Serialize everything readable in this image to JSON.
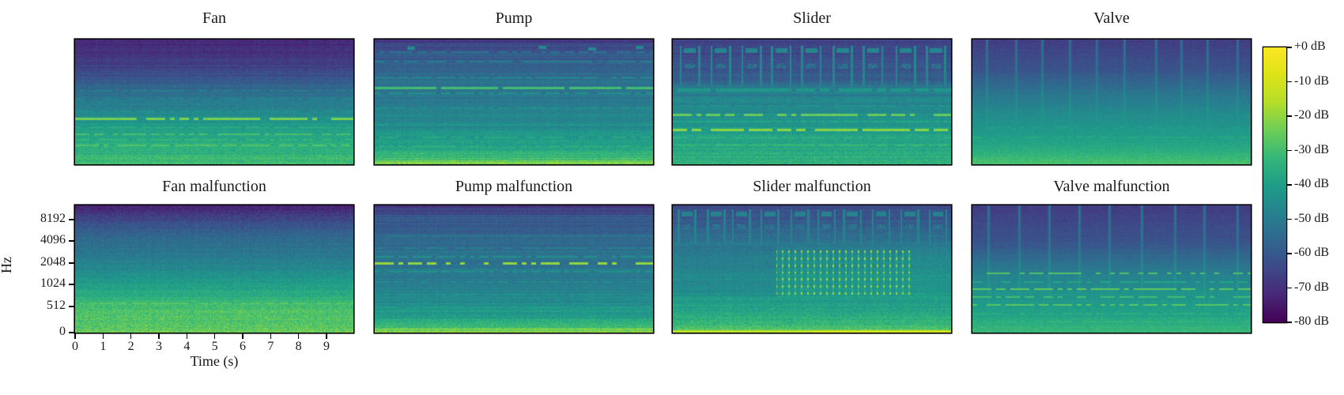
{
  "figure": {
    "background": "#ffffff",
    "text_color": "#1a1a1a"
  },
  "chart_data": {
    "type": "heatmap",
    "subtype": "spectrogram-grid",
    "colormap": "viridis",
    "clim_db": [
      -80,
      0
    ],
    "grid": "2 rows x 4 columns, shared axes; tick labels only on bottom-left panel",
    "time_axis": {
      "label": "Time (s)",
      "ticks": [
        "0",
        "1",
        "2",
        "3",
        "4",
        "5",
        "6",
        "7",
        "8",
        "9"
      ],
      "tick_rel": [
        0,
        0.1004,
        0.2008,
        0.3011,
        0.4015,
        0.5019,
        0.6023,
        0.7027,
        0.803,
        0.9034
      ],
      "range_s": [
        0,
        10
      ]
    },
    "freq_axis": {
      "label": "Hz",
      "ticks": [
        "8192",
        "4096",
        "2048",
        "1024",
        "512",
        "0"
      ],
      "tick_rel": [
        0.112,
        0.28,
        0.453,
        0.621,
        0.795,
        1.0
      ],
      "scale": "mel-like (octaves compressed toward top)"
    },
    "colorbar": {
      "tick_labels": [
        "+0 dB",
        "-10 dB",
        "-20 dB",
        "-30 dB",
        "-40 dB",
        "-50 dB",
        "-60 dB",
        "-70 dB",
        "-80 dB"
      ],
      "top_value_db": 0,
      "bottom_value_db": -80,
      "colors": {
        "top": "#fde725",
        "mid": "#21918c",
        "bottom": "#440154"
      }
    },
    "panels": [
      {
        "title": "Fan",
        "row": 0,
        "col": 0,
        "pattern": "dark blue-purple upper half fading to teal; bright yellow-green harmonic lines in lower third; green speckled bottom",
        "render": {
          "seed": 11,
          "noise": 3,
          "banding": 2.2,
          "profile": [
            [
              0,
              -72
            ],
            [
              0.22,
              -66
            ],
            [
              0.4,
              -55
            ],
            [
              0.55,
              -48
            ],
            [
              0.63,
              -44
            ],
            [
              0.75,
              -38
            ],
            [
              0.9,
              -34
            ],
            [
              1,
              -30
            ]
          ],
          "hlines": [
            {
              "y": 0.41,
              "db": -49,
              "th": 2,
              "dash": 0.35
            },
            {
              "y": 0.47,
              "db": -48,
              "th": 2,
              "dash": 0.35
            },
            {
              "y": 0.575,
              "db": -44,
              "th": 2,
              "dash": 0.3
            },
            {
              "y": 0.635,
              "db": -23,
              "th": 3,
              "dash": 0.22
            },
            {
              "y": 0.7,
              "db": -36,
              "th": 2,
              "dash": 0.3
            },
            {
              "y": 0.755,
              "db": -29,
              "th": 2,
              "dash": 0.3
            },
            {
              "y": 0.8,
              "db": -32,
              "th": 2,
              "dash": 0.35
            },
            {
              "y": 0.845,
              "db": -28,
              "th": 2,
              "dash": 0.3
            },
            {
              "y": 0.885,
              "db": -34,
              "th": 2,
              "dash": 0.4
            }
          ]
        }
      },
      {
        "title": "Pump",
        "row": 0,
        "col": 1,
        "pattern": "teal field with many fine horizontal striations; prominent teal-green line near 40% height; bright yellow-green bottom edge",
        "render": {
          "seed": 22,
          "noise": 3,
          "banding": 3.5,
          "profile": [
            [
              0,
              -68
            ],
            [
              0.06,
              -62
            ],
            [
              0.18,
              -57
            ],
            [
              0.32,
              -53
            ],
            [
              0.5,
              -50
            ],
            [
              0.62,
              -47
            ],
            [
              0.75,
              -43
            ],
            [
              0.88,
              -38
            ],
            [
              0.95,
              -30
            ],
            [
              1,
              -20
            ]
          ],
          "blips": [
            [
              0.13,
              0.065
            ],
            [
              0.6,
              0.06
            ],
            [
              0.78,
              0.07
            ],
            [
              0.95,
              0.06
            ]
          ],
          "hlines": [
            {
              "y": 0.1,
              "db": -52,
              "th": 2,
              "dash": 0.3
            },
            {
              "y": 0.175,
              "db": -50,
              "th": 2,
              "dash": 0.3
            },
            {
              "y": 0.3,
              "db": -47,
              "th": 2,
              "dash": 0.35
            },
            {
              "y": 0.385,
              "db": -30,
              "th": 3,
              "dash": 0.05
            },
            {
              "y": 0.43,
              "db": -44,
              "th": 2,
              "dash": 0.3
            },
            {
              "y": 0.55,
              "db": -45,
              "th": 2,
              "dash": 0.4
            },
            {
              "y": 0.68,
              "db": -42,
              "th": 2,
              "dash": 0.4
            },
            {
              "y": 0.78,
              "db": -37,
              "th": 2,
              "dash": 0.45
            },
            {
              "y": 0.85,
              "db": -35,
              "th": 2,
              "dash": 0.45
            }
          ]
        }
      },
      {
        "title": "Slider",
        "row": 0,
        "col": 2,
        "pattern": "~9 periodic arch/bottle blobs on dark top third; bright dashed yellow lines at 60% and 72%; striated green lower half",
        "render": {
          "seed": 33,
          "noise": 3,
          "banding": 2.5,
          "profile": [
            [
              0,
              -66
            ],
            [
              0.3,
              -60
            ],
            [
              0.4,
              -50
            ],
            [
              0.52,
              -47
            ],
            [
              0.65,
              -43
            ],
            [
              0.8,
              -38
            ],
            [
              1,
              -34
            ]
          ],
          "arches": {
            "count": 9,
            "y0": 0.05,
            "y1": 0.37,
            "db": -47
          },
          "hlines": [
            {
              "y": 0.405,
              "db": -42,
              "th": 4,
              "dash": 0.15
            },
            {
              "y": 0.475,
              "db": -45,
              "th": 2,
              "dash": 0.4
            },
            {
              "y": 0.53,
              "db": -43,
              "th": 2,
              "dash": 0.4
            },
            {
              "y": 0.6,
              "db": -25,
              "th": 3,
              "dash": 0.3
            },
            {
              "y": 0.655,
              "db": -38,
              "th": 2,
              "dash": 0.4
            },
            {
              "y": 0.72,
              "db": -21,
              "th": 3,
              "dash": 0.2
            },
            {
              "y": 0.78,
              "db": -34,
              "th": 2,
              "dash": 0.4
            },
            {
              "y": 0.845,
              "db": -32,
              "th": 2,
              "dash": 0.35
            },
            {
              "y": 0.91,
              "db": -35,
              "th": 2,
              "dash": 0.4
            }
          ]
        }
      },
      {
        "title": "Valve",
        "row": 0,
        "col": 3,
        "pattern": "~10 thin periodic vertical impulse streaks over dark purple top half; teal middle; green-yellow speckled bottom",
        "render": {
          "seed": 44,
          "noise": 3.2,
          "banding": 1.8,
          "profile": [
            [
              0,
              -68
            ],
            [
              0.25,
              -62
            ],
            [
              0.45,
              -52
            ],
            [
              0.6,
              -46
            ],
            [
              0.75,
              -42
            ],
            [
              0.88,
              -37
            ],
            [
              1,
              -30
            ]
          ],
          "vstreaks": {
            "count": 10,
            "amp": 17,
            "depth": 0.75,
            "width": 2
          },
          "hlines": [
            {
              "y": 0.7,
              "db": -40,
              "th": 2,
              "dash": 0.5
            },
            {
              "y": 0.78,
              "db": -37,
              "th": 2,
              "dash": 0.5
            }
          ]
        }
      },
      {
        "title": "Fan malfunction",
        "row": 1,
        "col": 0,
        "pattern": "smooth broadband gradient: dark top, teal middle, bright green-yellow speckled lower third (raised noise floor)",
        "render": {
          "seed": 55,
          "noise": 4,
          "banding": 1.5,
          "profile": [
            [
              0,
              -74
            ],
            [
              0.08,
              -66
            ],
            [
              0.2,
              -58
            ],
            [
              0.35,
              -52
            ],
            [
              0.5,
              -46
            ],
            [
              0.62,
              -40
            ],
            [
              0.72,
              -34
            ],
            [
              0.82,
              -29
            ],
            [
              1,
              -26
            ]
          ],
          "hlines": [
            {
              "y": 0.77,
              "db": -27,
              "th": 2,
              "dash": 0.3
            }
          ]
        }
      },
      {
        "title": "Pump malfunction",
        "row": 1,
        "col": 1,
        "pattern": "teal striated field with bright dashed yellow line near 1 kHz (45% height); bright yellow bottom edge",
        "render": {
          "seed": 66,
          "noise": 3.2,
          "banding": 3,
          "profile": [
            [
              0,
              -68
            ],
            [
              0.08,
              -61
            ],
            [
              0.25,
              -56
            ],
            [
              0.45,
              -52
            ],
            [
              0.6,
              -49
            ],
            [
              0.75,
              -45
            ],
            [
              0.88,
              -40
            ],
            [
              0.95,
              -30
            ],
            [
              1,
              -20
            ]
          ],
          "hlines": [
            {
              "y": 0.24,
              "db": -52,
              "th": 2,
              "dash": 0.4
            },
            {
              "y": 0.33,
              "db": -49,
              "th": 2,
              "dash": 0.4
            },
            {
              "y": 0.4,
              "db": -44,
              "th": 2,
              "dash": 0.35
            },
            {
              "y": 0.455,
              "db": -20,
              "th": 3,
              "dash": 0.45
            },
            {
              "y": 0.52,
              "db": -43,
              "th": 2,
              "dash": 0.4
            },
            {
              "y": 0.6,
              "db": -45,
              "th": 2,
              "dash": 0.5
            },
            {
              "y": 0.7,
              "db": -43,
              "th": 2,
              "dash": 0.5
            },
            {
              "y": 0.8,
              "db": -40,
              "th": 2,
              "dash": 0.5
            }
          ]
        }
      },
      {
        "title": "Slider malfunction",
        "row": 1,
        "col": 2,
        "pattern": "arch blobs on dark top; dense grid of bright yellow dots over right two-thirds of midband; very bright yellow bottom edge",
        "render": {
          "seed": 77,
          "noise": 3.5,
          "banding": 2,
          "profile": [
            [
              0,
              -64
            ],
            [
              0.25,
              -54
            ],
            [
              0.38,
              -47
            ],
            [
              0.5,
              -44
            ],
            [
              0.65,
              -42
            ],
            [
              0.8,
              -39
            ],
            [
              0.93,
              -33
            ],
            [
              1,
              -24
            ]
          ],
          "arches": {
            "count": 10,
            "y0": 0.03,
            "y1": 0.3,
            "db": -48
          },
          "dotgrid": {
            "x0": 0.37,
            "x1": 0.85,
            "rows": [
              0.36,
              0.415,
              0.47,
              0.525,
              0.58,
              0.635,
              0.69
            ],
            "sp": 8,
            "db": -19
          },
          "darker": {
            "x1": 0.37,
            "y0": 0.32,
            "y1": 0.72,
            "d": 3
          },
          "bottom_line": {
            "db": -13,
            "brighter_x": 0.5
          },
          "hlines": [
            {
              "y": 0.92,
              "db": -32,
              "th": 2,
              "dash": 0.4
            }
          ]
        }
      },
      {
        "title": "Valve malfunction",
        "row": 1,
        "col": 3,
        "pattern": "~9 vertical impulse streaks on dark top; multiple bright dashed green-yellow harmonic lines between 53% and 91% height",
        "render": {
          "seed": 88,
          "noise": 3.2,
          "banding": 2,
          "profile": [
            [
              0,
              -68
            ],
            [
              0.3,
              -62
            ],
            [
              0.45,
              -54
            ],
            [
              0.58,
              -48
            ],
            [
              0.7,
              -44
            ],
            [
              0.85,
              -40
            ],
            [
              1,
              -33
            ]
          ],
          "vstreaks": {
            "count": 9,
            "amp": 18,
            "depth": 0.85,
            "width": 2
          },
          "hlines": [
            {
              "y": 0.53,
              "db": -28,
              "th": 2,
              "dash": 0.4
            },
            {
              "y": 0.6,
              "db": -38,
              "th": 2,
              "dash": 0.45
            },
            {
              "y": 0.655,
              "db": -26,
              "th": 2,
              "dash": 0.35
            },
            {
              "y": 0.72,
              "db": -30,
              "th": 2,
              "dash": 0.4
            },
            {
              "y": 0.78,
              "db": -27,
              "th": 2,
              "dash": 0.4
            },
            {
              "y": 0.85,
              "db": -35,
              "th": 2,
              "dash": 0.45
            },
            {
              "y": 0.91,
              "db": -33,
              "th": 2,
              "dash": 0.45
            }
          ]
        }
      }
    ]
  }
}
